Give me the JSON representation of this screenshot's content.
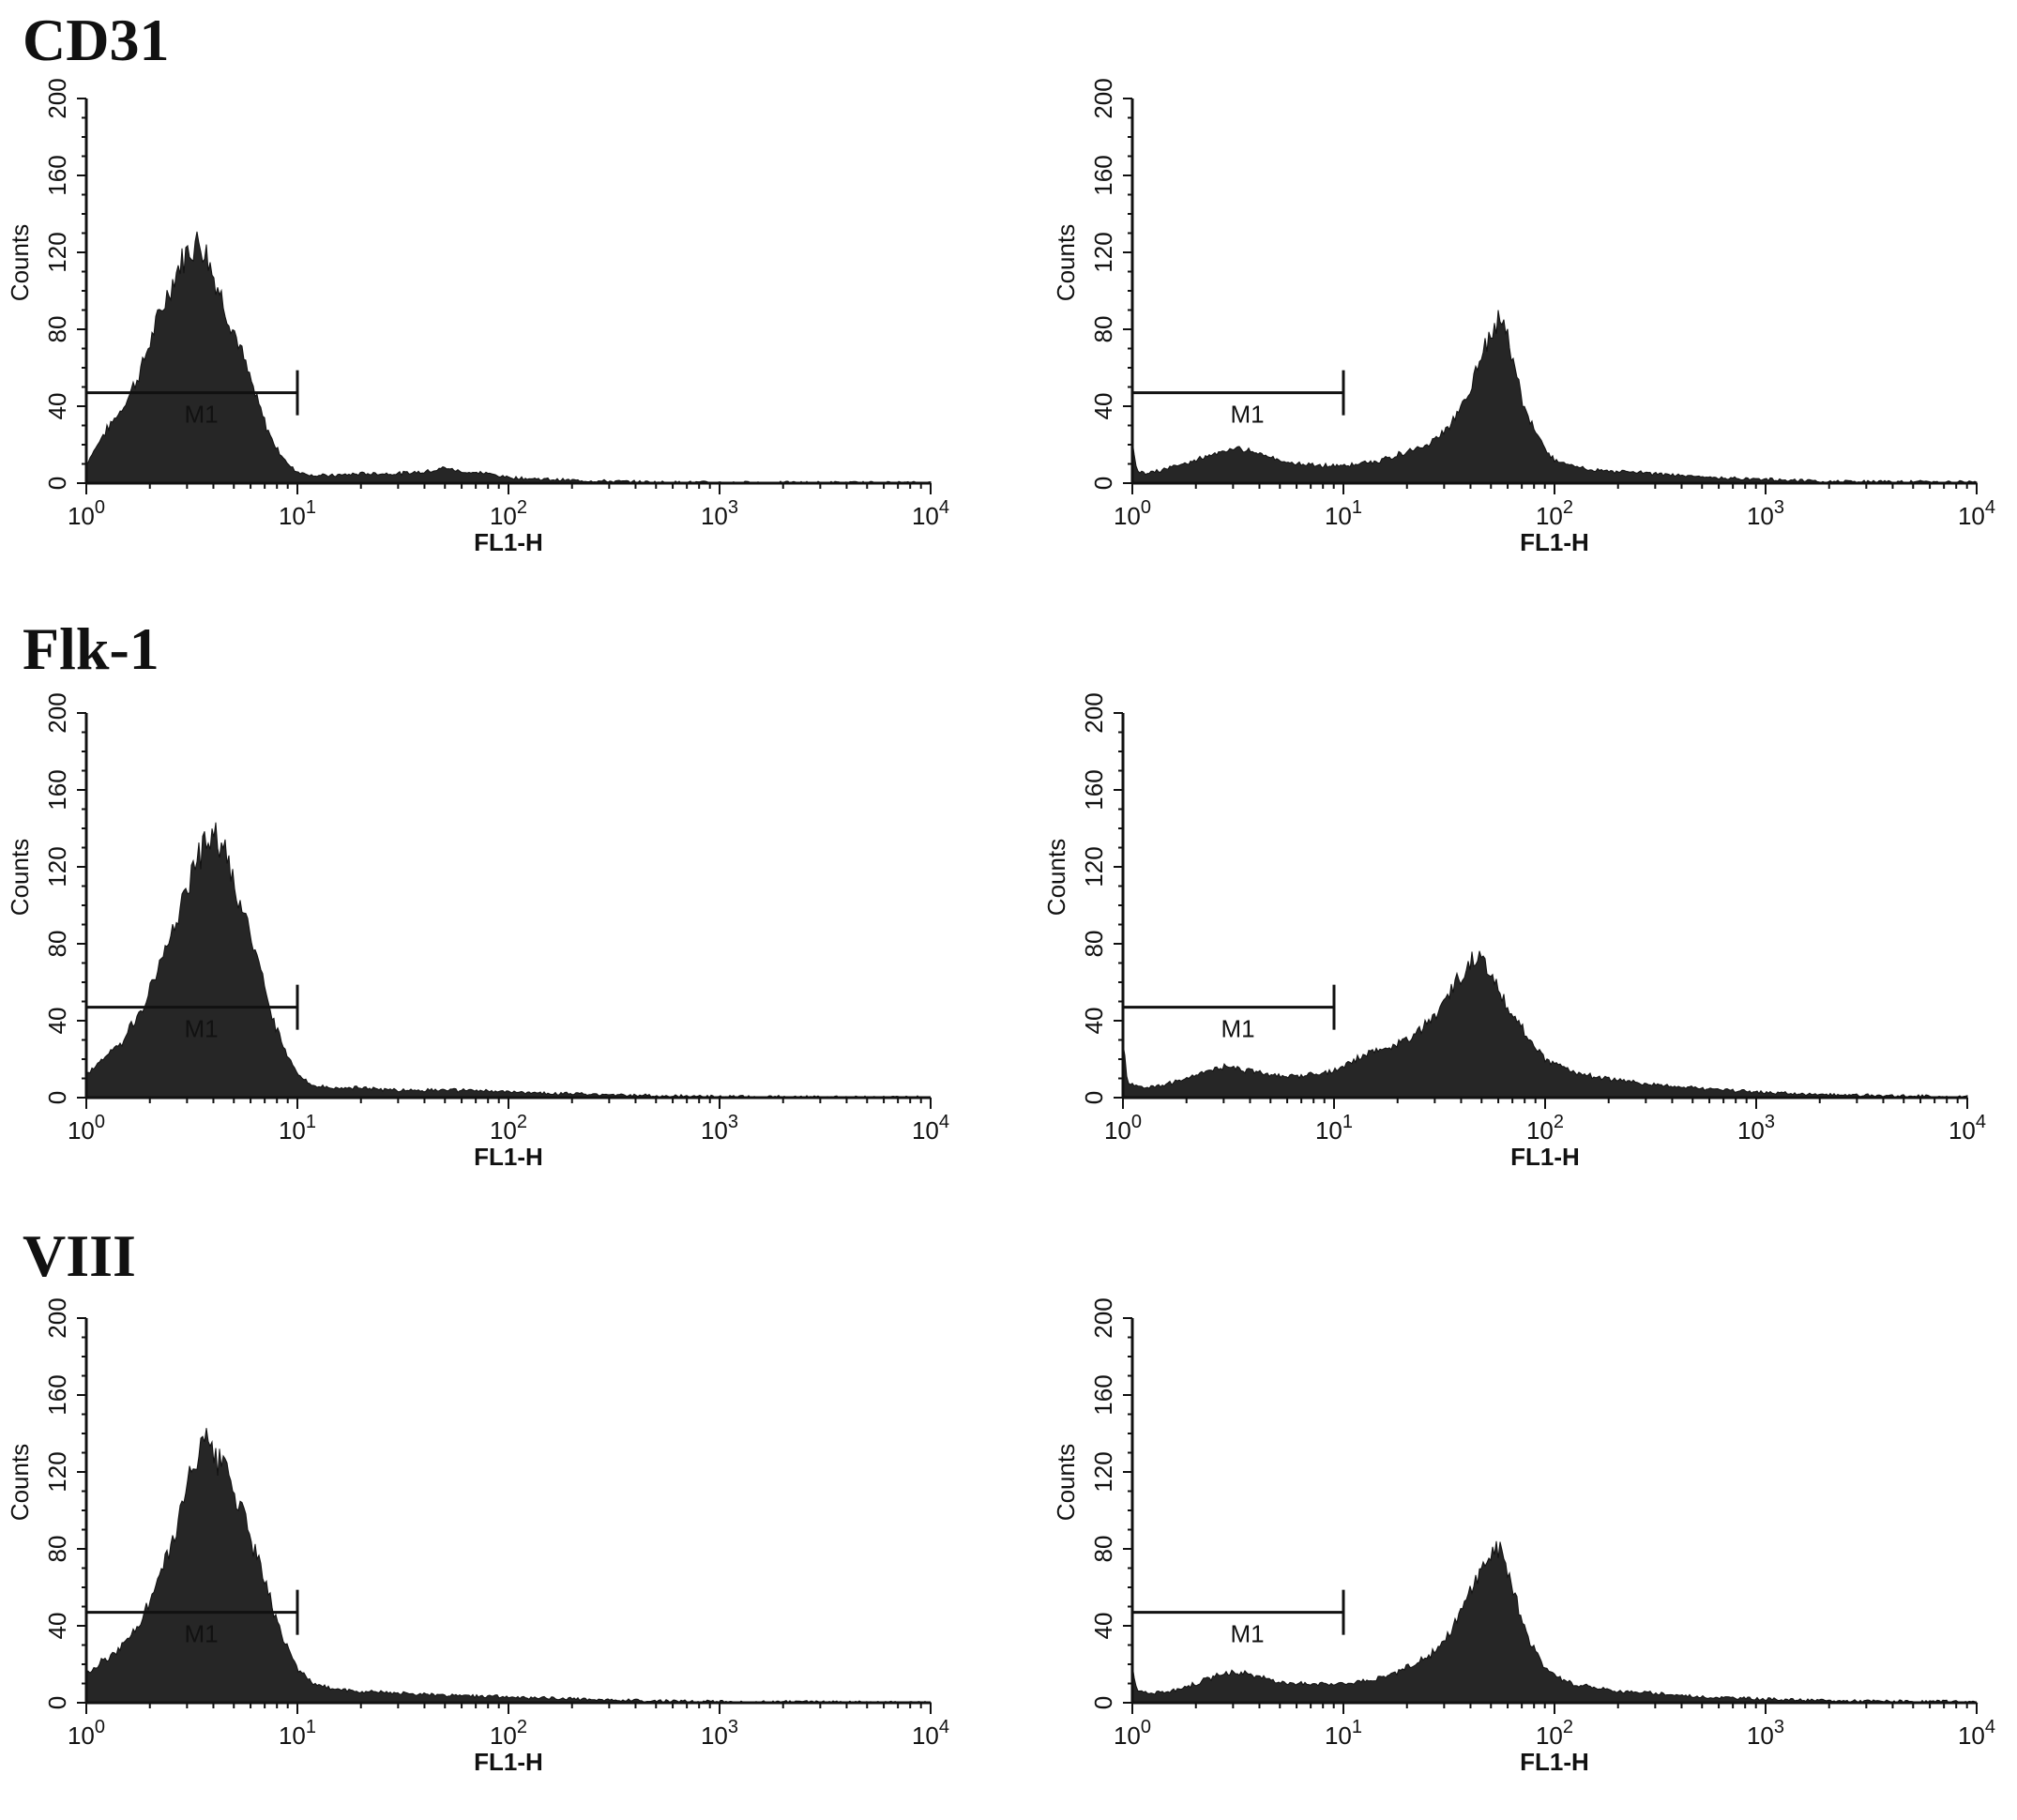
{
  "row_labels": [
    "CD31",
    "Flk-1",
    "VIII"
  ],
  "chart_data": [
    {
      "type": "area",
      "row": "CD31",
      "panel": "left",
      "xlabel": "FL1-H",
      "ylabel": "Counts",
      "xscale": "log",
      "xlim": [
        1,
        10000
      ],
      "ylim": [
        0,
        200
      ],
      "yticks": [
        "0",
        "40",
        "80",
        "120",
        "160",
        "200"
      ],
      "xticks": [
        {
          "base": "10",
          "exp": "0"
        },
        {
          "base": "10",
          "exp": "1"
        },
        {
          "base": "10",
          "exp": "2"
        },
        {
          "base": "10",
          "exp": "3"
        },
        {
          "base": "10",
          "exp": "4"
        }
      ],
      "gate": {
        "label": "M1",
        "x0": 1,
        "x1": 10,
        "y": 47
      },
      "x": [
        1,
        1.2,
        1.5,
        1.8,
        2.1,
        2.5,
        2.8,
        3.1,
        3.4,
        3.7,
        4.0,
        4.4,
        4.8,
        5.3,
        5.8,
        6.5,
        7.2,
        8.0,
        9.0,
        10,
        12,
        15,
        20,
        30,
        40,
        50,
        60,
        80,
        100,
        150,
        200,
        300,
        500,
        1000,
        10000
      ],
      "y": [
        10,
        25,
        40,
        58,
        80,
        102,
        115,
        122,
        126,
        120,
        108,
        96,
        84,
        72,
        58,
        42,
        28,
        18,
        10,
        6,
        4,
        4,
        5,
        5,
        6,
        8,
        6,
        5,
        3,
        2,
        1.5,
        1,
        0.5,
        0.3,
        0.2
      ]
    },
    {
      "type": "area",
      "row": "CD31",
      "panel": "right",
      "xlabel": "FL1-H",
      "ylabel": "Counts",
      "xscale": "log",
      "xlim": [
        1,
        10000
      ],
      "ylim": [
        0,
        200
      ],
      "yticks": [
        "0",
        "40",
        "80",
        "120",
        "160",
        "200"
      ],
      "xticks": [
        {
          "base": "10",
          "exp": "0"
        },
        {
          "base": "10",
          "exp": "1"
        },
        {
          "base": "10",
          "exp": "2"
        },
        {
          "base": "10",
          "exp": "3"
        },
        {
          "base": "10",
          "exp": "4"
        }
      ],
      "gate": {
        "label": "M1",
        "x0": 1,
        "x1": 10,
        "y": 47
      },
      "x": [
        1,
        1.05,
        1.2,
        1.5,
        2,
        2.5,
        3,
        3.5,
        4,
        5,
        6,
        8,
        10,
        12,
        15,
        20,
        25,
        30,
        35,
        40,
        45,
        50,
        55,
        60,
        65,
        70,
        80,
        90,
        100,
        120,
        150,
        200,
        300,
        500,
        1000,
        2000,
        10000
      ],
      "y": [
        22,
        6,
        5,
        8,
        12,
        16,
        18,
        17,
        15,
        12,
        10,
        9,
        9,
        10,
        12,
        16,
        20,
        26,
        36,
        50,
        66,
        78,
        85,
        76,
        60,
        44,
        28,
        18,
        12,
        9,
        7,
        6,
        5,
        3,
        2,
        1,
        0.5
      ]
    },
    {
      "type": "area",
      "row": "Flk-1",
      "panel": "left",
      "xlabel": "FL1-H",
      "ylabel": "Counts",
      "xscale": "log",
      "xlim": [
        1,
        10000
      ],
      "ylim": [
        0,
        200
      ],
      "yticks": [
        "0",
        "40",
        "80",
        "120",
        "160",
        "200"
      ],
      "xticks": [
        {
          "base": "10",
          "exp": "0"
        },
        {
          "base": "10",
          "exp": "1"
        },
        {
          "base": "10",
          "exp": "2"
        },
        {
          "base": "10",
          "exp": "3"
        },
        {
          "base": "10",
          "exp": "4"
        }
      ],
      "gate": {
        "label": "M1",
        "x0": 1,
        "x1": 10,
        "y": 47
      },
      "x": [
        1,
        1.2,
        1.5,
        1.8,
        2.1,
        2.5,
        2.8,
        3.1,
        3.4,
        3.7,
        4.0,
        4.4,
        4.8,
        5.3,
        5.8,
        6.5,
        7.2,
        8.0,
        9.0,
        10,
        12,
        15,
        20,
        30,
        50,
        100,
        200,
        500,
        1000,
        10000
      ],
      "y": [
        12,
        20,
        30,
        45,
        62,
        85,
        100,
        115,
        125,
        133,
        138,
        130,
        118,
        102,
        88,
        70,
        52,
        35,
        22,
        12,
        6,
        5,
        5,
        4,
        4,
        3,
        2,
        1,
        0.5,
        0.2
      ]
    },
    {
      "type": "area",
      "row": "Flk-1",
      "panel": "right",
      "xlabel": "FL1-H",
      "ylabel": "Counts",
      "xscale": "log",
      "xlim": [
        1,
        10000
      ],
      "ylim": [
        0,
        200
      ],
      "yticks": [
        "0",
        "40",
        "80",
        "120",
        "160",
        "200"
      ],
      "xticks": [
        {
          "base": "10",
          "exp": "0"
        },
        {
          "base": "10",
          "exp": "1"
        },
        {
          "base": "10",
          "exp": "2"
        },
        {
          "base": "10",
          "exp": "3"
        },
        {
          "base": "10",
          "exp": "4"
        }
      ],
      "gate": {
        "label": "M1",
        "x0": 1,
        "x1": 10,
        "y": 47
      },
      "x": [
        1,
        1.05,
        1.2,
        1.5,
        2,
        2.5,
        3,
        3.5,
        4,
        5,
        6,
        8,
        10,
        12,
        15,
        20,
        25,
        30,
        35,
        40,
        45,
        50,
        55,
        60,
        70,
        80,
        90,
        100,
        120,
        150,
        200,
        300,
        500,
        1000,
        2000,
        10000
      ],
      "y": [
        30,
        8,
        5,
        6,
        10,
        14,
        16,
        15,
        14,
        12,
        11,
        12,
        14,
        18,
        24,
        28,
        34,
        42,
        54,
        64,
        72,
        76,
        66,
        56,
        44,
        34,
        26,
        20,
        16,
        12,
        10,
        7,
        5,
        3,
        1.5,
        0.5
      ]
    },
    {
      "type": "area",
      "row": "VIII",
      "panel": "left",
      "xlabel": "FL1-H",
      "ylabel": "Counts",
      "xscale": "log",
      "xlim": [
        1,
        10000
      ],
      "ylim": [
        0,
        200
      ],
      "yticks": [
        "0",
        "40",
        "80",
        "120",
        "160",
        "200"
      ],
      "xticks": [
        {
          "base": "10",
          "exp": "0"
        },
        {
          "base": "10",
          "exp": "1"
        },
        {
          "base": "10",
          "exp": "2"
        },
        {
          "base": "10",
          "exp": "3"
        },
        {
          "base": "10",
          "exp": "4"
        }
      ],
      "gate": {
        "label": "M1",
        "x0": 1,
        "x1": 10,
        "y": 47
      },
      "x": [
        1,
        1.2,
        1.5,
        1.8,
        2.1,
        2.5,
        2.8,
        3.1,
        3.4,
        3.7,
        4.0,
        4.4,
        4.8,
        5.3,
        5.8,
        6.5,
        7.2,
        8.0,
        9.0,
        10,
        12,
        15,
        20,
        30,
        50,
        100,
        200,
        500,
        1000,
        10000
      ],
      "y": [
        14,
        22,
        30,
        42,
        58,
        80,
        100,
        118,
        132,
        135,
        128,
        124,
        118,
        104,
        90,
        74,
        58,
        42,
        28,
        18,
        10,
        7,
        6,
        5,
        4,
        3,
        2,
        1,
        0.5,
        0.2
      ]
    },
    {
      "type": "area",
      "row": "VIII",
      "panel": "right",
      "xlabel": "FL1-H",
      "ylabel": "Counts",
      "xscale": "log",
      "xlim": [
        1,
        10000
      ],
      "ylim": [
        0,
        200
      ],
      "yticks": [
        "0",
        "40",
        "80",
        "120",
        "160",
        "200"
      ],
      "xticks": [
        {
          "base": "10",
          "exp": "0"
        },
        {
          "base": "10",
          "exp": "1"
        },
        {
          "base": "10",
          "exp": "2"
        },
        {
          "base": "10",
          "exp": "3"
        },
        {
          "base": "10",
          "exp": "4"
        }
      ],
      "gate": {
        "label": "M1",
        "x0": 1,
        "x1": 10,
        "y": 47
      },
      "x": [
        1,
        1.05,
        1.2,
        1.5,
        2,
        2.5,
        3,
        3.5,
        4,
        5,
        6,
        8,
        10,
        12,
        15,
        20,
        25,
        30,
        35,
        40,
        45,
        50,
        55,
        60,
        65,
        70,
        80,
        90,
        100,
        120,
        150,
        200,
        300,
        500,
        1000,
        2000,
        10000
      ],
      "y": [
        20,
        6,
        5,
        6,
        10,
        14,
        16,
        15,
        13,
        11,
        10,
        10,
        10,
        11,
        13,
        18,
        24,
        32,
        44,
        58,
        70,
        78,
        80,
        70,
        56,
        42,
        28,
        18,
        14,
        10,
        8,
        6,
        5,
        3,
        2,
        1,
        0.5
      ]
    }
  ]
}
